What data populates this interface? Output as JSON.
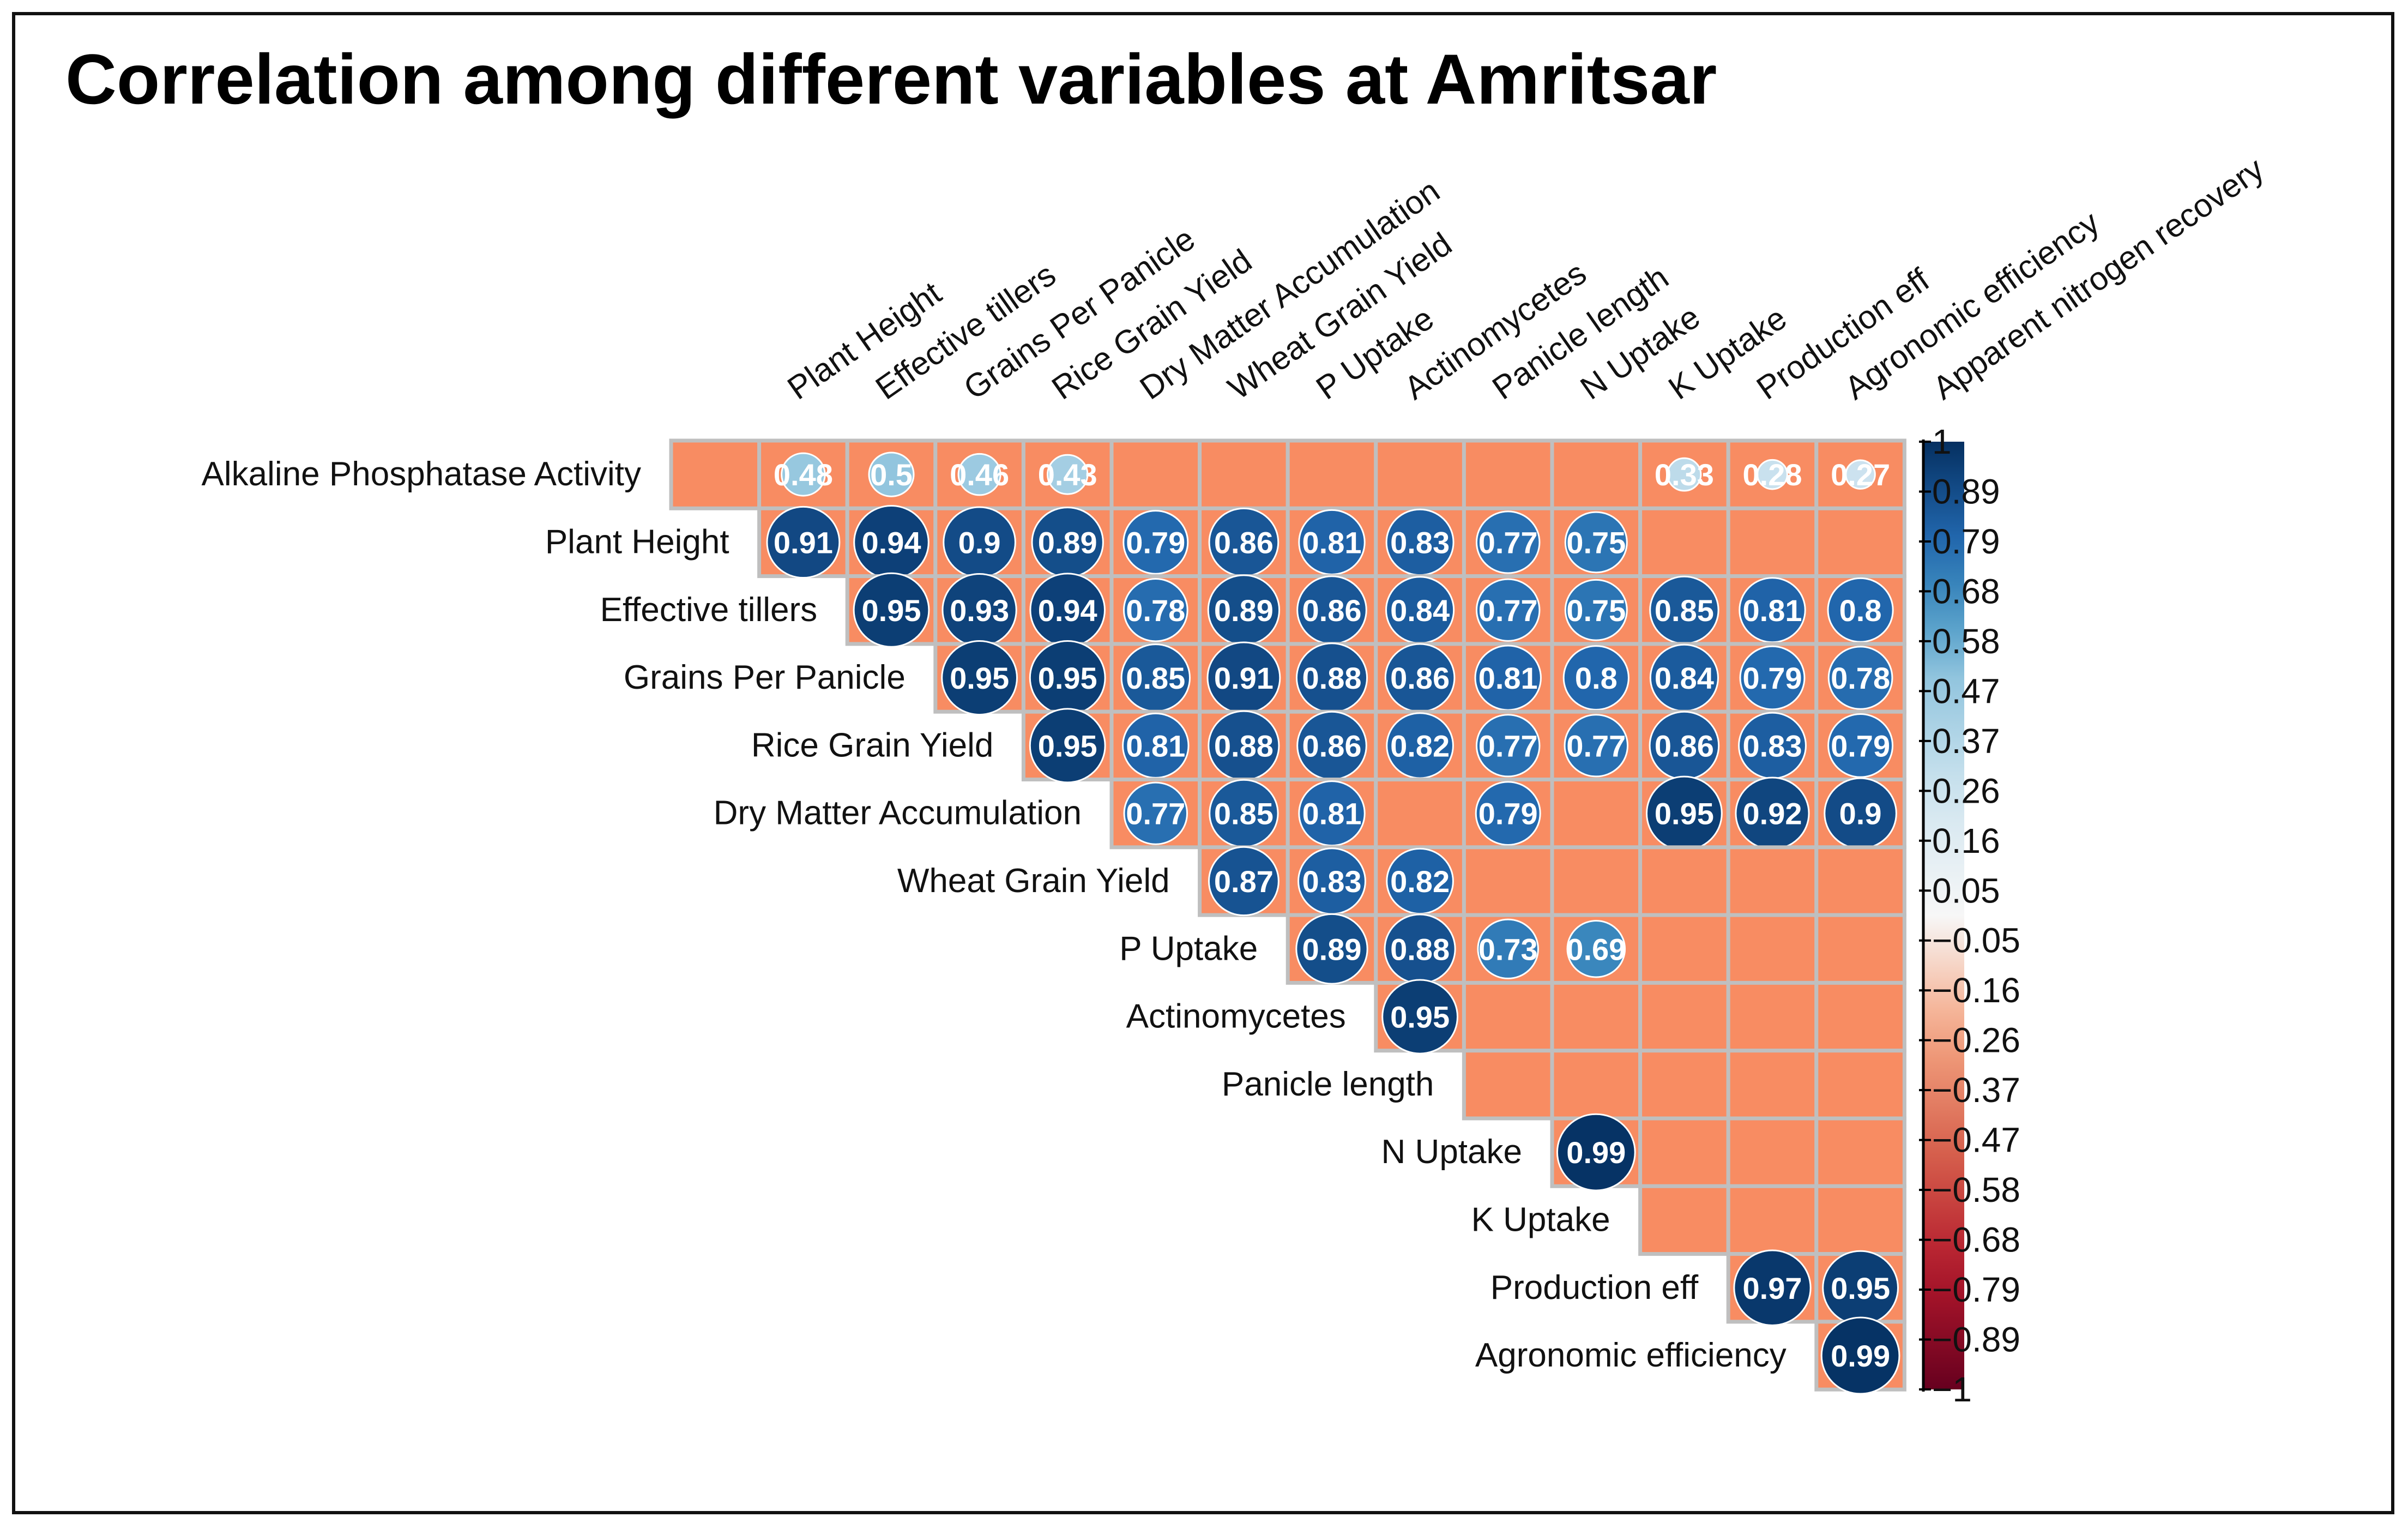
{
  "title": "Correlation among different variables at Amritsar",
  "chart_data": {
    "type": "heatmap",
    "subtype": "correlation-matrix-upper",
    "columns": [
      "Plant Height",
      "Effective tillers",
      "Grains Per Panicle",
      "Rice Grain Yield",
      "Dry Matter Accumulation",
      "Wheat Grain Yield",
      "P Uptake",
      "Actinomycetes",
      "Panicle length",
      "N Uptake",
      "K Uptake",
      "Production eff",
      "Agronomic efficiency",
      "Apparent nitrogen recovery"
    ],
    "rows": [
      "Alkaline Phosphatase Activity",
      "Plant Height",
      "Effective tillers",
      "Grains Per Panicle",
      "Rice Grain Yield",
      "Dry Matter Accumulation",
      "Wheat Grain Yield",
      "P Uptake",
      "Actinomycetes",
      "Panicle length",
      "N Uptake",
      "K Uptake",
      "Production eff",
      "Agronomic efficiency"
    ],
    "values": [
      [
        0.48,
        0.5,
        0.46,
        0.43,
        null,
        null,
        null,
        null,
        null,
        null,
        0.33,
        0.28,
        0.27
      ],
      [
        0.91,
        0.94,
        0.9,
        0.89,
        0.79,
        0.86,
        0.81,
        0.83,
        0.77,
        0.75,
        null,
        null,
        null
      ],
      [
        0.95,
        0.93,
        0.94,
        0.78,
        0.89,
        0.86,
        0.84,
        0.77,
        0.75,
        0.85,
        0.81,
        0.8
      ],
      [
        0.95,
        0.95,
        0.85,
        0.91,
        0.88,
        0.86,
        0.81,
        0.8,
        0.84,
        0.79,
        0.78
      ],
      [
        0.95,
        0.81,
        0.88,
        0.86,
        0.82,
        0.77,
        0.77,
        0.86,
        0.83,
        0.79
      ],
      [
        0.77,
        0.85,
        0.81,
        null,
        0.79,
        null,
        0.95,
        0.92,
        0.9
      ],
      [
        0.87,
        0.83,
        0.82,
        null,
        null,
        null,
        null,
        null
      ],
      [
        0.89,
        0.88,
        0.73,
        0.69,
        null,
        null,
        null
      ],
      [
        0.95,
        null,
        null,
        null,
        null,
        null
      ],
      [
        null,
        null,
        null,
        null,
        null
      ],
      [
        0.99,
        null,
        null,
        null
      ],
      [
        null,
        null,
        null
      ],
      [
        0.97,
        0.95
      ],
      [
        0.99
      ]
    ],
    "row_start_col": [
      -1,
      0,
      1,
      2,
      3,
      4,
      5,
      6,
      7,
      8,
      9,
      10,
      11,
      12
    ],
    "blank_cell_color": "#f88c62",
    "grid_color": "#bfbfbf",
    "colorbar": {
      "range": [
        -1,
        1
      ],
      "tick_labels": [
        "1",
        "0.89",
        "0.79",
        "0.68",
        "0.58",
        "0.47",
        "0.37",
        "0.26",
        "0.16",
        "0.05",
        "−0.05",
        "−0.16",
        "−0.26",
        "−0.37",
        "−0.47",
        "−0.58",
        "−0.68",
        "−0.79",
        "−0.89",
        "−1"
      ],
      "colors": {
        "top": "#053061",
        "upper_mid": "#4393c3",
        "mid": "#f7f7f7",
        "lower_mid": "#d6604d",
        "bottom": "#67001f"
      }
    },
    "label_color_dark": "#ffffff"
  }
}
